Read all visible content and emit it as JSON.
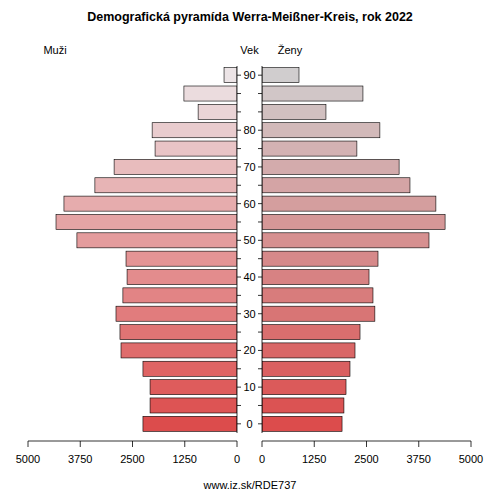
{
  "chart_data": {
    "type": "bar",
    "orientation": "horizontal",
    "title": "Demografická pyramída Werra-Meißner-Kreis, rok 2022",
    "ylabel": "Vek",
    "source": "www.iz.sk/RDE737",
    "categories": [
      "0",
      null,
      "10",
      null,
      "20",
      null,
      "30",
      null,
      "40",
      null,
      "50",
      null,
      "60",
      null,
      "70",
      null,
      "80",
      null,
      null,
      "90"
    ],
    "xlim": [
      0,
      5000
    ],
    "xticks": [
      0,
      1250,
      2500,
      3750,
      5000
    ],
    "series": [
      {
        "name": "Muži",
        "values": [
          2250,
          2080,
          2080,
          2250,
          2775,
          2800,
          2895,
          2730,
          2630,
          2655,
          3830,
          4330,
          4140,
          3400,
          2940,
          1960,
          2030,
          930,
          1270,
          310
        ],
        "colors": [
          "#dc4c4c",
          "#dd5454",
          "#de5c5c",
          "#df6464",
          "#df6c6c",
          "#e07474",
          "#e17c7d",
          "#e28485",
          "#e38c8d",
          "#e49495",
          "#e49c9d",
          "#e5a4a5",
          "#e6acad",
          "#e7b4b5",
          "#e8bcbd",
          "#e9c4c6",
          "#e9ccce",
          "#ead4d6",
          "#ebdcde",
          "#ece4e6"
        ]
      },
      {
        "name": "Ženy",
        "values": [
          1915,
          1960,
          2010,
          2105,
          2225,
          2345,
          2700,
          2655,
          2560,
          2775,
          3995,
          4380,
          4160,
          3540,
          3280,
          2270,
          2820,
          1530,
          2415,
          885
        ],
        "colors": [
          "#dc4c4c",
          "#db5353",
          "#db5a5a",
          "#da6061",
          "#d96767",
          "#d96e6e",
          "#d87575",
          "#d87c7c",
          "#d78283",
          "#d6898a",
          "#d69090",
          "#d59797",
          "#d49e9e",
          "#d4a4a5",
          "#d3abac",
          "#d3b2b3",
          "#d2b9b9",
          "#d1c0c0",
          "#d1c6c7",
          "#d0cdce"
        ]
      }
    ]
  }
}
